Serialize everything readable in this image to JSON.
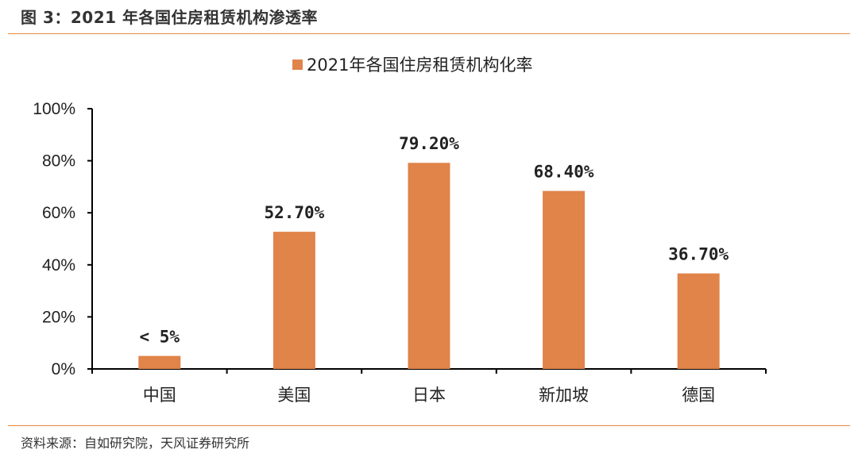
{
  "header": {
    "figure_title": "图 3：2021 年各国住房租赁机构渗透率"
  },
  "footer": {
    "source": "资料来源：自如研究院，天风证券研究所"
  },
  "colors": {
    "bar": "#e0844a",
    "rule": "#e8893e",
    "axis": "#000000"
  },
  "chart_data": {
    "type": "bar",
    "categories": [
      "中国",
      "美国",
      "日本",
      "新加坡",
      "德国"
    ],
    "series": [
      {
        "name": "2021年各国住房租赁机构化率",
        "values": [
          5.0,
          52.7,
          79.2,
          68.4,
          36.7
        ],
        "labels": [
          "< 5%",
          "52.70%",
          "79.20%",
          "68.40%",
          "36.70%"
        ]
      }
    ],
    "ylim": [
      0,
      100
    ],
    "yticks": [
      0,
      20,
      40,
      60,
      80,
      100
    ],
    "ytick_labels": [
      "0%",
      "20%",
      "40%",
      "60%",
      "80%",
      "100%"
    ],
    "legend": "top-center",
    "grid": false
  }
}
